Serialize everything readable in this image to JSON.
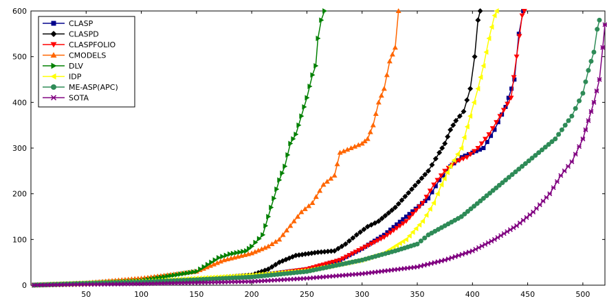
{
  "chart_data": {
    "type": "line",
    "title": "",
    "xlabel": "",
    "ylabel": "",
    "xlim": [
      0,
      520
    ],
    "ylim": [
      0,
      600
    ],
    "x_ticks": [
      50,
      100,
      150,
      200,
      250,
      300,
      350,
      400,
      450,
      500
    ],
    "y_ticks": [
      0,
      100,
      200,
      300,
      400,
      500,
      600
    ],
    "grid": false,
    "legend_position": "top-left",
    "series": [
      {
        "name": "CLASP",
        "color": "#00008b",
        "marker": "square",
        "points": [
          [
            0,
            0
          ],
          [
            50,
            4
          ],
          [
            100,
            7
          ],
          [
            150,
            12
          ],
          [
            200,
            20
          ],
          [
            250,
            35
          ],
          [
            280,
            55
          ],
          [
            300,
            80
          ],
          [
            320,
            110
          ],
          [
            340,
            150
          ],
          [
            360,
            190
          ],
          [
            370,
            230
          ],
          [
            380,
            260
          ],
          [
            390,
            280
          ],
          [
            400,
            290
          ],
          [
            410,
            300
          ],
          [
            420,
            340
          ],
          [
            430,
            390
          ],
          [
            438,
            450
          ],
          [
            442,
            550
          ],
          [
            446,
            600
          ]
        ]
      },
      {
        "name": "CLASPD",
        "color": "#000000",
        "marker": "diamond",
        "points": [
          [
            0,
            0
          ],
          [
            50,
            4
          ],
          [
            100,
            7
          ],
          [
            150,
            12
          ],
          [
            180,
            18
          ],
          [
            200,
            22
          ],
          [
            215,
            35
          ],
          [
            225,
            50
          ],
          [
            240,
            65
          ],
          [
            260,
            72
          ],
          [
            275,
            75
          ],
          [
            285,
            90
          ],
          [
            295,
            110
          ],
          [
            305,
            128
          ],
          [
            315,
            140
          ],
          [
            330,
            170
          ],
          [
            345,
            210
          ],
          [
            360,
            250
          ],
          [
            370,
            290
          ],
          [
            375,
            310
          ],
          [
            380,
            340
          ],
          [
            385,
            360
          ],
          [
            392,
            380
          ],
          [
            398,
            430
          ],
          [
            402,
            500
          ],
          [
            405,
            580
          ],
          [
            407,
            600
          ]
        ]
      },
      {
        "name": "CLASPFOLIO",
        "color": "#ff0000",
        "marker": "triangle-down",
        "points": [
          [
            0,
            0
          ],
          [
            50,
            4
          ],
          [
            100,
            7
          ],
          [
            150,
            12
          ],
          [
            200,
            18
          ],
          [
            250,
            35
          ],
          [
            280,
            55
          ],
          [
            300,
            80
          ],
          [
            320,
            105
          ],
          [
            340,
            140
          ],
          [
            355,
            180
          ],
          [
            365,
            220
          ],
          [
            375,
            250
          ],
          [
            385,
            270
          ],
          [
            395,
            280
          ],
          [
            405,
            300
          ],
          [
            415,
            330
          ],
          [
            425,
            370
          ],
          [
            435,
            410
          ],
          [
            440,
            500
          ],
          [
            445,
            590
          ],
          [
            447,
            600
          ]
        ]
      },
      {
        "name": "CMODELS",
        "color": "#ff6600",
        "marker": "triangle-up",
        "points": [
          [
            0,
            0
          ],
          [
            50,
            5
          ],
          [
            100,
            15
          ],
          [
            150,
            30
          ],
          [
            175,
            55
          ],
          [
            200,
            70
          ],
          [
            215,
            85
          ],
          [
            225,
            100
          ],
          [
            235,
            130
          ],
          [
            245,
            160
          ],
          [
            255,
            180
          ],
          [
            265,
            220
          ],
          [
            275,
            240
          ],
          [
            280,
            290
          ],
          [
            290,
            300
          ],
          [
            300,
            310
          ],
          [
            305,
            320
          ],
          [
            310,
            350
          ],
          [
            315,
            400
          ],
          [
            320,
            430
          ],
          [
            325,
            490
          ],
          [
            330,
            520
          ],
          [
            333,
            600
          ]
        ]
      },
      {
        "name": "DLV",
        "color": "#008000",
        "marker": "triangle-right",
        "points": [
          [
            0,
            0
          ],
          [
            50,
            4
          ],
          [
            100,
            10
          ],
          [
            150,
            30
          ],
          [
            160,
            45
          ],
          [
            170,
            60
          ],
          [
            180,
            68
          ],
          [
            195,
            75
          ],
          [
            200,
            85
          ],
          [
            210,
            110
          ],
          [
            215,
            150
          ],
          [
            220,
            190
          ],
          [
            225,
            230
          ],
          [
            230,
            260
          ],
          [
            235,
            310
          ],
          [
            240,
            330
          ],
          [
            245,
            370
          ],
          [
            250,
            410
          ],
          [
            255,
            460
          ],
          [
            258,
            480
          ],
          [
            260,
            540
          ],
          [
            263,
            580
          ],
          [
            266,
            600
          ]
        ]
      },
      {
        "name": "IDP",
        "color": "#ffff00",
        "marker": "triangle-left",
        "points": [
          [
            0,
            0
          ],
          [
            50,
            4
          ],
          [
            100,
            8
          ],
          [
            150,
            15
          ],
          [
            200,
            22
          ],
          [
            250,
            32
          ],
          [
            300,
            55
          ],
          [
            320,
            70
          ],
          [
            340,
            100
          ],
          [
            355,
            140
          ],
          [
            365,
            180
          ],
          [
            372,
            220
          ],
          [
            380,
            260
          ],
          [
            390,
            300
          ],
          [
            398,
            370
          ],
          [
            405,
            430
          ],
          [
            410,
            480
          ],
          [
            415,
            540
          ],
          [
            420,
            590
          ],
          [
            422,
            600
          ]
        ]
      },
      {
        "name": "ME-ASP(APC)",
        "color": "#2e8b57",
        "marker": "circle",
        "points": [
          [
            0,
            0
          ],
          [
            50,
            4
          ],
          [
            100,
            7
          ],
          [
            150,
            12
          ],
          [
            200,
            18
          ],
          [
            250,
            30
          ],
          [
            300,
            55
          ],
          [
            330,
            75
          ],
          [
            350,
            90
          ],
          [
            360,
            110
          ],
          [
            375,
            130
          ],
          [
            390,
            150
          ],
          [
            410,
            190
          ],
          [
            430,
            230
          ],
          [
            445,
            260
          ],
          [
            460,
            290
          ],
          [
            475,
            320
          ],
          [
            490,
            370
          ],
          [
            500,
            420
          ],
          [
            505,
            470
          ],
          [
            510,
            510
          ],
          [
            513,
            560
          ],
          [
            515,
            580
          ]
        ]
      },
      {
        "name": "SOTA",
        "color": "#800080",
        "marker": "x",
        "points": [
          [
            0,
            0
          ],
          [
            100,
            3
          ],
          [
            200,
            8
          ],
          [
            250,
            15
          ],
          [
            300,
            25
          ],
          [
            350,
            40
          ],
          [
            375,
            55
          ],
          [
            400,
            75
          ],
          [
            420,
            100
          ],
          [
            440,
            130
          ],
          [
            455,
            160
          ],
          [
            470,
            200
          ],
          [
            480,
            240
          ],
          [
            490,
            270
          ],
          [
            500,
            320
          ],
          [
            505,
            360
          ],
          [
            510,
            400
          ],
          [
            515,
            450
          ],
          [
            518,
            520
          ],
          [
            520,
            570
          ]
        ]
      }
    ]
  }
}
